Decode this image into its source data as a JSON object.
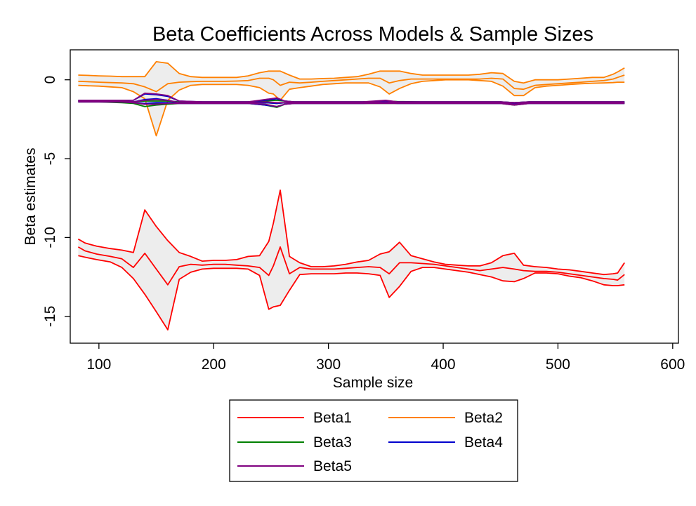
{
  "chart_data": {
    "type": "line",
    "title": "Beta Coefficients Across Models & Sample Sizes",
    "xlabel": "Sample size",
    "ylabel": "Beta estimates",
    "xlim": [
      75,
      605
    ],
    "ylim": [
      -16.7,
      1.9
    ],
    "xticks": [
      100,
      200,
      300,
      400,
      500,
      600
    ],
    "yticks": [
      0,
      -5,
      -10,
      -15
    ],
    "grid": false,
    "legend_position": "bottom",
    "legend_columns": 2,
    "band_fill": "#ededed",
    "series": [
      {
        "name": "Beta1",
        "color": "#ff0000",
        "x": [
          82,
          88,
          98,
          110,
          120,
          130,
          140,
          150,
          160,
          170,
          180,
          190,
          200,
          210,
          220,
          230,
          240,
          248,
          252,
          258,
          266,
          275,
          285,
          295,
          305,
          315,
          325,
          335,
          345,
          353,
          362,
          372,
          382,
          392,
          402,
          412,
          422,
          432,
          442,
          452,
          462,
          470,
          480,
          490,
          500,
          510,
          520,
          530,
          540,
          548,
          552,
          558
        ],
        "estimate": [
          -10.6,
          -10.85,
          -11.05,
          -11.2,
          -11.35,
          -11.9,
          -11.0,
          -12.0,
          -13.0,
          -11.85,
          -11.7,
          -11.75,
          -11.7,
          -11.7,
          -11.75,
          -11.8,
          -11.9,
          -12.4,
          -11.8,
          -10.6,
          -12.3,
          -11.9,
          -12.0,
          -12.0,
          -12.0,
          -11.95,
          -11.9,
          -11.85,
          -11.9,
          -12.3,
          -11.6,
          -11.6,
          -11.65,
          -11.7,
          -11.8,
          -11.9,
          -12.0,
          -12.1,
          -12.0,
          -11.9,
          -12.0,
          -12.1,
          -12.15,
          -12.15,
          -12.2,
          -12.3,
          -12.4,
          -12.5,
          -12.6,
          -12.65,
          -12.7,
          -12.35
        ],
        "lower": [
          -11.15,
          -11.25,
          -11.4,
          -11.55,
          -11.9,
          -12.6,
          -13.6,
          -14.7,
          -15.85,
          -12.65,
          -12.2,
          -12.0,
          -11.95,
          -11.95,
          -11.95,
          -12.0,
          -12.4,
          -14.55,
          -14.4,
          -14.3,
          -13.35,
          -12.35,
          -12.3,
          -12.3,
          -12.3,
          -12.25,
          -12.25,
          -12.3,
          -12.4,
          -13.8,
          -13.1,
          -12.15,
          -11.9,
          -11.9,
          -12.0,
          -12.1,
          -12.2,
          -12.35,
          -12.5,
          -12.75,
          -12.8,
          -12.6,
          -12.25,
          -12.25,
          -12.3,
          -12.45,
          -12.55,
          -12.75,
          -13.0,
          -13.05,
          -13.05,
          -13.0
        ],
        "upper": [
          -10.1,
          -10.35,
          -10.55,
          -10.7,
          -10.8,
          -10.95,
          -8.25,
          -9.3,
          -10.2,
          -10.95,
          -11.2,
          -11.5,
          -11.45,
          -11.45,
          -11.4,
          -11.2,
          -11.15,
          -10.25,
          -9.1,
          -7.0,
          -11.2,
          -11.6,
          -11.85,
          -11.85,
          -11.8,
          -11.7,
          -11.55,
          -11.45,
          -11.05,
          -10.9,
          -10.3,
          -11.15,
          -11.35,
          -11.55,
          -11.7,
          -11.75,
          -11.8,
          -11.8,
          -11.6,
          -11.15,
          -11.0,
          -11.75,
          -11.85,
          -11.9,
          -12.0,
          -12.05,
          -12.15,
          -12.25,
          -12.35,
          -12.3,
          -12.25,
          -11.6
        ]
      },
      {
        "name": "Beta2",
        "color": "#ff8000",
        "x": [
          82,
          90,
          100,
          110,
          120,
          130,
          140,
          150,
          160,
          170,
          180,
          190,
          200,
          210,
          220,
          230,
          240,
          248,
          252,
          258,
          266,
          275,
          285,
          295,
          305,
          315,
          325,
          335,
          345,
          353,
          362,
          372,
          382,
          392,
          402,
          412,
          422,
          432,
          442,
          452,
          462,
          470,
          480,
          490,
          500,
          510,
          520,
          530,
          540,
          548,
          552,
          558
        ],
        "estimate": [
          -0.1,
          -0.12,
          -0.15,
          -0.18,
          -0.2,
          -0.25,
          -0.45,
          -0.75,
          -0.25,
          -0.15,
          -0.12,
          -0.1,
          -0.1,
          -0.1,
          -0.08,
          -0.05,
          0.1,
          0.1,
          0.0,
          -0.35,
          -0.15,
          -0.2,
          -0.15,
          -0.1,
          -0.05,
          0.0,
          0.05,
          0.1,
          0.1,
          -0.2,
          -0.05,
          0.05,
          0.05,
          0.05,
          0.05,
          0.05,
          0.05,
          0.05,
          0.1,
          0.05,
          -0.55,
          -0.6,
          -0.35,
          -0.3,
          -0.25,
          -0.2,
          -0.15,
          -0.1,
          -0.05,
          0.05,
          0.15,
          0.3
        ],
        "lower": [
          -0.35,
          -0.38,
          -0.4,
          -0.45,
          -0.5,
          -0.75,
          -1.2,
          -3.55,
          -1.3,
          -0.65,
          -0.35,
          -0.3,
          -0.3,
          -0.3,
          -0.3,
          -0.35,
          -0.5,
          -0.85,
          -0.9,
          -1.3,
          -0.6,
          -0.5,
          -0.4,
          -0.3,
          -0.25,
          -0.2,
          -0.2,
          -0.2,
          -0.45,
          -0.9,
          -0.55,
          -0.25,
          -0.1,
          -0.05,
          0.0,
          0.0,
          0.0,
          -0.05,
          -0.1,
          -0.4,
          -1.0,
          -1.0,
          -0.5,
          -0.4,
          -0.35,
          -0.3,
          -0.25,
          -0.22,
          -0.2,
          -0.18,
          -0.15,
          -0.15
        ],
        "upper": [
          0.3,
          0.28,
          0.25,
          0.23,
          0.2,
          0.2,
          0.2,
          1.15,
          1.05,
          0.4,
          0.2,
          0.15,
          0.15,
          0.15,
          0.15,
          0.25,
          0.45,
          0.55,
          0.55,
          0.55,
          0.3,
          0.05,
          0.05,
          0.08,
          0.1,
          0.15,
          0.2,
          0.35,
          0.55,
          0.55,
          0.55,
          0.4,
          0.3,
          0.3,
          0.3,
          0.3,
          0.3,
          0.35,
          0.45,
          0.4,
          -0.1,
          -0.2,
          0.0,
          0.0,
          0.0,
          0.05,
          0.1,
          0.15,
          0.15,
          0.35,
          0.5,
          0.75
        ]
      },
      {
        "name": "Beta3",
        "color": "#008000",
        "x": [
          82,
          100,
          120,
          130,
          140,
          150,
          160,
          170,
          190,
          210,
          230,
          245,
          255,
          262,
          270,
          290,
          310,
          330,
          350,
          360,
          380,
          400,
          420,
          450,
          462,
          475,
          500,
          530,
          558
        ],
        "estimate": [
          -1.35,
          -1.35,
          -1.4,
          -1.45,
          -1.55,
          -1.5,
          -1.45,
          -1.45,
          -1.45,
          -1.45,
          -1.45,
          -1.45,
          -1.5,
          -1.45,
          -1.45,
          -1.45,
          -1.45,
          -1.45,
          -1.45,
          -1.45,
          -1.45,
          -1.45,
          -1.45,
          -1.45,
          -1.5,
          -1.45,
          -1.45,
          -1.45,
          -1.45
        ],
        "lower": [
          -1.4,
          -1.4,
          -1.45,
          -1.5,
          -1.7,
          -1.6,
          -1.55,
          -1.5,
          -1.5,
          -1.5,
          -1.5,
          -1.6,
          -1.75,
          -1.55,
          -1.5,
          -1.5,
          -1.5,
          -1.5,
          -1.5,
          -1.5,
          -1.5,
          -1.5,
          -1.5,
          -1.5,
          -1.6,
          -1.5,
          -1.5,
          -1.5,
          -1.5
        ],
        "upper": [
          -1.3,
          -1.3,
          -1.35,
          -1.4,
          -1.35,
          -1.35,
          -1.35,
          -1.4,
          -1.4,
          -1.4,
          -1.4,
          -1.35,
          -1.3,
          -1.35,
          -1.4,
          -1.4,
          -1.4,
          -1.4,
          -1.35,
          -1.38,
          -1.4,
          -1.4,
          -1.4,
          -1.4,
          -1.45,
          -1.4,
          -1.4,
          -1.4,
          -1.4
        ]
      },
      {
        "name": "Beta4",
        "color": "#0000cc",
        "x": [
          82,
          100,
          120,
          130,
          140,
          150,
          160,
          170,
          190,
          210,
          230,
          245,
          255,
          262,
          270,
          290,
          310,
          330,
          350,
          360,
          380,
          400,
          420,
          450,
          462,
          475,
          500,
          530,
          558
        ],
        "estimate": [
          -1.35,
          -1.35,
          -1.35,
          -1.4,
          -1.25,
          -1.2,
          -1.3,
          -1.45,
          -1.45,
          -1.45,
          -1.45,
          -1.45,
          -1.5,
          -1.45,
          -1.45,
          -1.45,
          -1.45,
          -1.45,
          -1.4,
          -1.45,
          -1.45,
          -1.45,
          -1.45,
          -1.45,
          -1.5,
          -1.45,
          -1.45,
          -1.45,
          -1.45
        ],
        "lower": [
          -1.4,
          -1.4,
          -1.4,
          -1.45,
          -1.5,
          -1.45,
          -1.45,
          -1.5,
          -1.5,
          -1.5,
          -1.5,
          -1.6,
          -1.7,
          -1.55,
          -1.5,
          -1.5,
          -1.5,
          -1.5,
          -1.45,
          -1.5,
          -1.5,
          -1.5,
          -1.5,
          -1.5,
          -1.55,
          -1.5,
          -1.5,
          -1.5,
          -1.5
        ],
        "upper": [
          -1.3,
          -1.3,
          -1.3,
          -1.3,
          -0.9,
          -0.95,
          -1.05,
          -1.35,
          -1.4,
          -1.4,
          -1.4,
          -1.3,
          -1.2,
          -1.35,
          -1.4,
          -1.4,
          -1.4,
          -1.4,
          -1.35,
          -1.4,
          -1.4,
          -1.4,
          -1.4,
          -1.4,
          -1.45,
          -1.4,
          -1.4,
          -1.4,
          -1.4
        ]
      },
      {
        "name": "Beta5",
        "color": "#800080",
        "x": [
          82,
          100,
          120,
          130,
          140,
          150,
          160,
          170,
          190,
          210,
          230,
          245,
          255,
          262,
          270,
          290,
          310,
          330,
          350,
          360,
          380,
          400,
          420,
          450,
          462,
          475,
          500,
          530,
          558
        ],
        "estimate": [
          -1.35,
          -1.35,
          -1.35,
          -1.4,
          -1.3,
          -1.25,
          -1.3,
          -1.45,
          -1.45,
          -1.45,
          -1.45,
          -1.4,
          -1.45,
          -1.45,
          -1.45,
          -1.45,
          -1.45,
          -1.45,
          -1.4,
          -1.45,
          -1.45,
          -1.45,
          -1.45,
          -1.45,
          -1.55,
          -1.45,
          -1.45,
          -1.45,
          -1.45
        ],
        "lower": [
          -1.4,
          -1.4,
          -1.4,
          -1.45,
          -1.55,
          -1.55,
          -1.5,
          -1.5,
          -1.5,
          -1.5,
          -1.5,
          -1.55,
          -1.7,
          -1.55,
          -1.5,
          -1.5,
          -1.5,
          -1.5,
          -1.5,
          -1.5,
          -1.5,
          -1.5,
          -1.5,
          -1.5,
          -1.6,
          -1.5,
          -1.5,
          -1.5,
          -1.5
        ],
        "upper": [
          -1.3,
          -1.3,
          -1.3,
          -1.3,
          -0.85,
          -0.9,
          -1.0,
          -1.35,
          -1.4,
          -1.4,
          -1.4,
          -1.25,
          -1.15,
          -1.35,
          -1.4,
          -1.4,
          -1.4,
          -1.4,
          -1.3,
          -1.4,
          -1.4,
          -1.4,
          -1.4,
          -1.4,
          -1.45,
          -1.4,
          -1.4,
          -1.4,
          -1.4
        ]
      }
    ]
  }
}
